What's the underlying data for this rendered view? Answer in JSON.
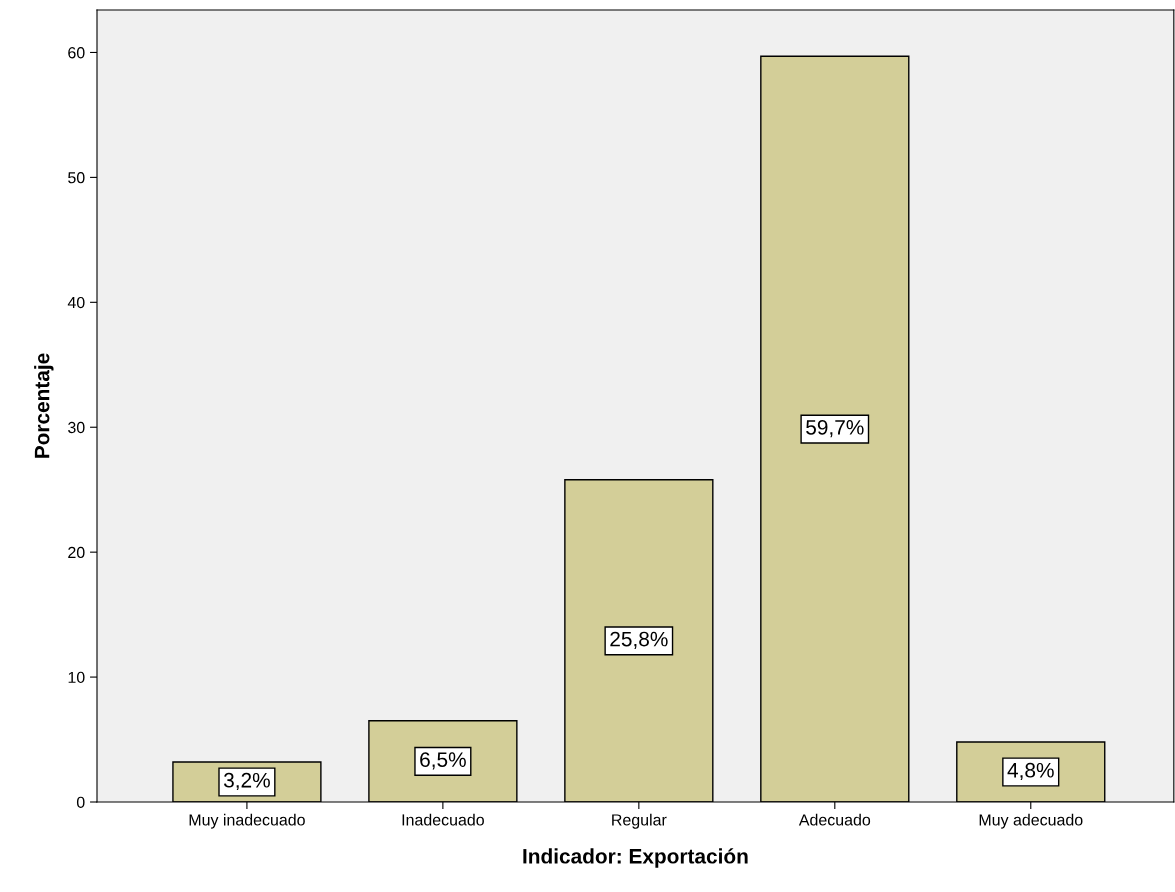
{
  "chart_data": {
    "type": "bar",
    "xlabel": "Indicador: Exportación",
    "ylabel": "Porcentaje",
    "categories": [
      "Muy inadecuado",
      "Inadecuado",
      "Regular",
      "Adecuado",
      "Muy adecuado"
    ],
    "values": [
      3.2,
      6.5,
      25.8,
      59.7,
      4.8
    ],
    "value_labels": [
      "3,2%",
      "6,5%",
      "25,8%",
      "59,7%",
      "4,8%"
    ],
    "color": "#d3ce98",
    "ylim": [
      0,
      63.4
    ],
    "yticks": [
      0,
      10,
      20,
      30,
      40,
      50,
      60
    ],
    "grid": false
  }
}
